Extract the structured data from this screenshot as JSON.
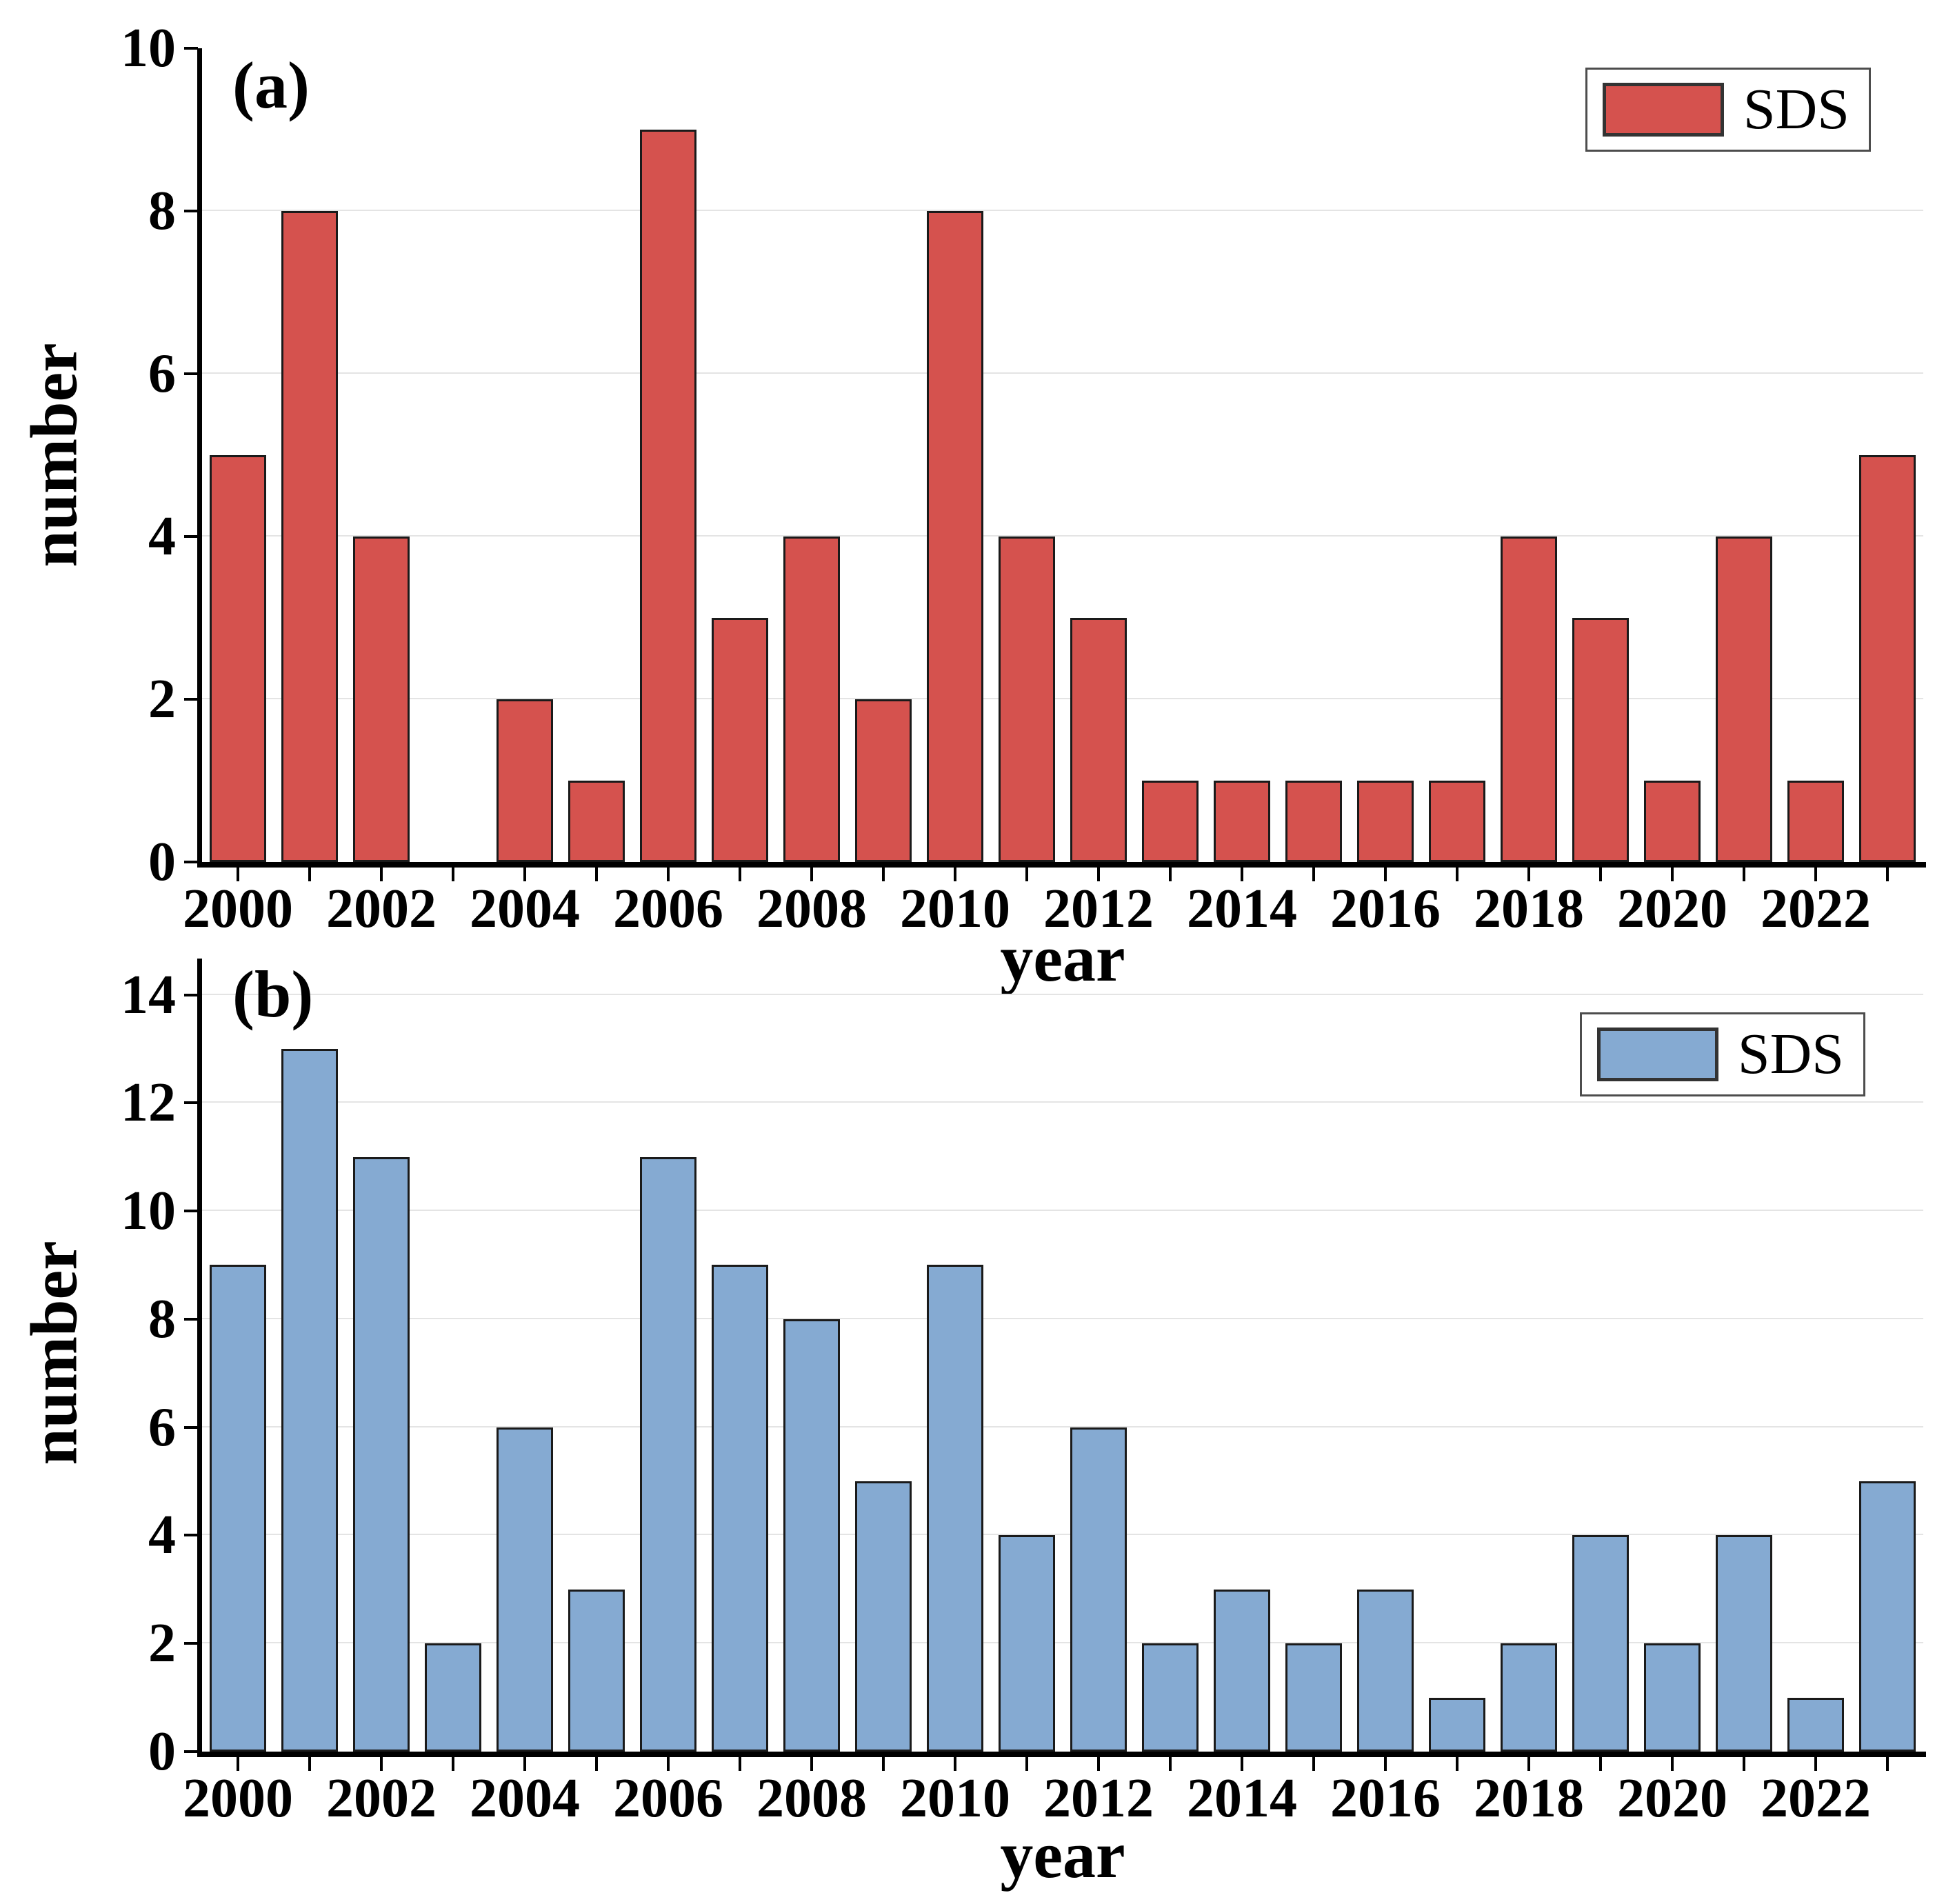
{
  "chart_data": [
    {
      "type": "bar",
      "panel_label": "(a)",
      "title": "",
      "xlabel": "year",
      "ylabel": "number",
      "legend": [
        "SDS"
      ],
      "legend_position": "top-right",
      "bar_color": "#d5524e",
      "bar_edge_color": "#1a1a1a",
      "grid": "horizontal",
      "grid_color": "#e4e4e4",
      "categories": [
        2000,
        2001,
        2002,
        2003,
        2004,
        2005,
        2006,
        2007,
        2008,
        2009,
        2010,
        2011,
        2012,
        2013,
        2014,
        2015,
        2016,
        2017,
        2018,
        2019,
        2020,
        2021,
        2022,
        2023
      ],
      "values": [
        5,
        8,
        4,
        0,
        2,
        1,
        9,
        3,
        4,
        2,
        8,
        4,
        3,
        1,
        1,
        1,
        1,
        1,
        4,
        3,
        1,
        4,
        1,
        5
      ],
      "ylim": [
        0,
        10
      ],
      "axis_value_at_top": 10,
      "yticks": [
        0,
        2,
        4,
        6,
        8,
        10
      ],
      "xtick_labels": [
        2000,
        2002,
        2004,
        2006,
        2008,
        2010,
        2012,
        2014,
        2016,
        2018,
        2020,
        2022
      ]
    },
    {
      "type": "bar",
      "panel_label": "(b)",
      "title": "",
      "xlabel": "year",
      "ylabel": "number",
      "legend": [
        "SDS"
      ],
      "legend_position": "top-right",
      "bar_color": "#85aad2",
      "bar_edge_color": "#1a1a1a",
      "grid": "horizontal",
      "grid_color": "#e4e4e4",
      "categories": [
        2000,
        2001,
        2002,
        2003,
        2004,
        2005,
        2006,
        2007,
        2008,
        2009,
        2010,
        2011,
        2012,
        2013,
        2014,
        2015,
        2016,
        2017,
        2018,
        2019,
        2020,
        2021,
        2022,
        2023
      ],
      "values": [
        9,
        13,
        11,
        2,
        6,
        3,
        11,
        9,
        8,
        5,
        9,
        4,
        6,
        2,
        3,
        2,
        3,
        1,
        2,
        4,
        2,
        4,
        1,
        5
      ],
      "ylim": [
        0,
        14.7
      ],
      "axis_value_at_top": 14.67,
      "yticks": [
        0,
        2,
        4,
        6,
        8,
        10,
        12,
        14
      ],
      "xtick_labels": [
        2000,
        2002,
        2004,
        2006,
        2008,
        2010,
        2012,
        2014,
        2016,
        2018,
        2020,
        2022
      ]
    }
  ]
}
